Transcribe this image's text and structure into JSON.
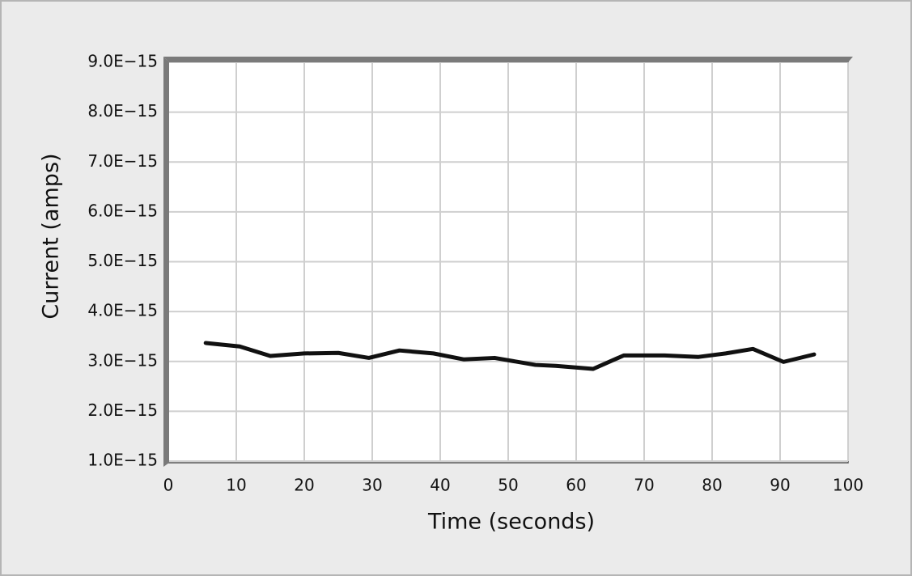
{
  "chart_data": {
    "type": "line",
    "x_label": "Time (seconds)",
    "y_label": "Current (amps)",
    "x": [
      5.5,
      10.5,
      15,
      20,
      25,
      29.5,
      34,
      39,
      43.5,
      48,
      54,
      57,
      62.5,
      67,
      73,
      78,
      82,
      86,
      90.5,
      95
    ],
    "values": [
      3.37e-15,
      3.3e-15,
      3.11e-15,
      3.16e-15,
      3.17e-15,
      3.07e-15,
      3.22e-15,
      3.16e-15,
      3.04e-15,
      3.07e-15,
      2.93e-15,
      2.91e-15,
      2.85e-15,
      3.12e-15,
      3.12e-15,
      3.09e-15,
      3.16e-15,
      3.25e-15,
      2.99e-15,
      3.14e-15
    ],
    "color": "#111111",
    "xlim": [
      0,
      100
    ],
    "xticks": [
      0,
      10,
      20,
      30,
      40,
      50,
      60,
      70,
      80,
      90,
      100
    ],
    "ylim": [
      1e-15,
      9e-15
    ],
    "yticks": [
      {
        "value": 1e-15,
        "label": "1.0E−15"
      },
      {
        "value": 2e-15,
        "label": "2.0E−15"
      },
      {
        "value": 3e-15,
        "label": "3.0E−15"
      },
      {
        "value": 4e-15,
        "label": "4.0E−15"
      },
      {
        "value": 5e-15,
        "label": "5.0E−15"
      },
      {
        "value": 6e-15,
        "label": "6.0E−15"
      },
      {
        "value": 7e-15,
        "label": "7.0E−15"
      },
      {
        "value": 8e-15,
        "label": "8.0E−15"
      },
      {
        "value": 9e-15,
        "label": "9.0E−15"
      }
    ],
    "grid": true
  }
}
